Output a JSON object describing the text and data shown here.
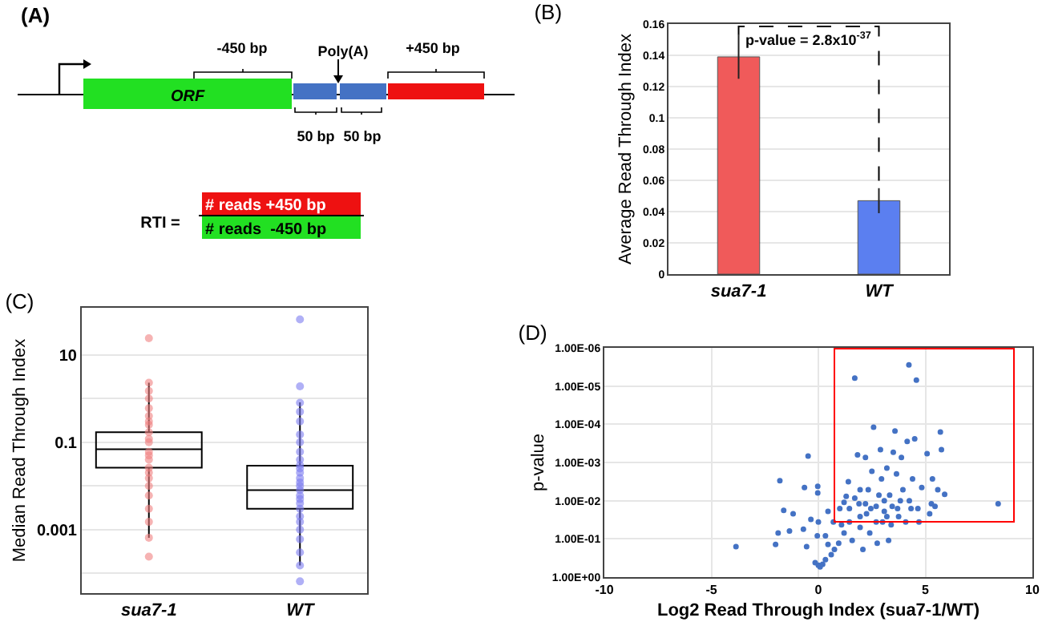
{
  "chart_data": [
    {
      "type": "other",
      "title": "(A)",
      "annotations": [
        "-450 bp",
        "Poly(A)",
        "+450 bp",
        "ORF",
        "50 bp",
        "50 bp",
        "RTI =",
        "# reads +450 bp",
        "# reads  -450 bp"
      ]
    },
    {
      "type": "bar",
      "title": "(B)",
      "categories": [
        "sua7-1",
        "WT"
      ],
      "values": [
        0.139,
        0.047
      ],
      "colors": [
        "#f05a5a",
        "#5b7ff0"
      ],
      "errors": [
        0.014,
        0.008
      ],
      "ylabel": "Average Read Through Index",
      "ylim": [
        0,
        0.16
      ],
      "yticks": [
        0,
        0.02,
        0.04,
        0.06,
        0.08,
        0.1,
        0.12,
        0.14,
        0.16
      ],
      "grid": "y",
      "annotations": [
        "p-value = 2.8x10$^{-37}$"
      ]
    },
    {
      "type": "box",
      "title": "(C)",
      "categories": [
        "sua7-1",
        "WT"
      ],
      "color": "#000000",
      "ylabel": "Median Read Through Index",
      "log": true,
      "grid": true,
      "ylim": [
        3.5e-05,
        120
      ],
      "yticks": [
        {
          "value": 0.0001,
          "label": null
        },
        0.001,
        {
          "value": 0.01,
          "label": null
        },
        0.1,
        {
          "value": 1,
          "label": null
        },
        10
      ],
      "boxes": [
        {
          "low": 0.00065,
          "q1": 0.026,
          "median": 0.069,
          "q3": 0.17,
          "high": 2.3
        },
        {
          "low": 0.00015,
          "q1": 0.003,
          "median": 0.008,
          "q3": 0.029,
          "high": 0.82
        }
      ],
      "series": [
        {
          "type": "scatter",
          "color": "#f08080",
          "marker": "circle",
          "x": [
            "sua7-1",
            "sua7-1",
            "sua7-1",
            "sua7-1",
            "sua7-1",
            "sua7-1",
            "sua7-1",
            "sua7-1",
            "sua7-1",
            "sua7-1",
            "sua7-1",
            "sua7-1",
            "sua7-1",
            "sua7-1",
            "sua7-1",
            "sua7-1",
            "sua7-1",
            "sua7-1",
            "sua7-1",
            "sua7-1",
            "sua7-1",
            "sua7-1",
            "sua7-1"
          ],
          "values": [
            24,
            2.3,
            1.5,
            1,
            0.6,
            0.4,
            0.3,
            0.25,
            0.17,
            0.12,
            0.1,
            0.06,
            0.05,
            0.04,
            0.026,
            0.02,
            0.015,
            0.01,
            0.006,
            0.003,
            0.0015,
            0.00065,
            0.00024
          ]
        },
        {
          "type": "scatter",
          "color": "#7b7bf0",
          "marker": "circle",
          "x": [
            "WT",
            "WT",
            "WT",
            "WT",
            "WT",
            "WT",
            "WT",
            "WT",
            "WT",
            "WT",
            "WT",
            "WT",
            "WT",
            "WT",
            "WT",
            "WT",
            "WT",
            "WT",
            "WT",
            "WT",
            "WT",
            "WT",
            "WT",
            "WT",
            "WT",
            "WT",
            "WT"
          ],
          "values": [
            65,
            1.9,
            0.8,
            0.5,
            0.3,
            0.15,
            0.1,
            0.06,
            0.04,
            0.03,
            0.025,
            0.02,
            0.015,
            0.012,
            0.01,
            0.008,
            0.006,
            0.005,
            0.004,
            0.003,
            0.002,
            0.0015,
            0.001,
            0.0006,
            0.0003,
            0.00015,
            6.5e-05
          ]
        }
      ]
    },
    {
      "type": "scatter",
      "title": "(D)",
      "xlabel": "Log2 Read Through Index (sua7-1/WT)",
      "ylabel": "p-value",
      "color": "#4472c4",
      "marker": "circle",
      "log": "y",
      "grid": true,
      "xlim": [
        -10,
        10
      ],
      "xticks": [
        -10,
        -5,
        0,
        5,
        10
      ],
      "ylim": [
        1,
        1e-06
      ],
      "yticks": [
        {
          "value": 1,
          "label": "1.00E+00"
        },
        {
          "value": 0.1,
          "label": "1.00E-01"
        },
        {
          "value": 0.01,
          "label": "1.00E-02"
        },
        {
          "value": 0.001,
          "label": "1.00E-03"
        },
        {
          "value": 0.0001,
          "label": "1.00E-04"
        },
        {
          "value": 1e-05,
          "label": "1.00E-05"
        },
        {
          "value": 1e-06,
          "label": "1.00E-06"
        }
      ],
      "x": [
        -3.85,
        -2.0,
        -1.88,
        -1.8,
        -1.62,
        -1.35,
        -1.18,
        -0.7,
        -0.65,
        -0.55,
        -0.48,
        -0.35,
        -0.03,
        -0.03,
        0,
        -0.05,
        -0.15,
        0,
        0.08,
        0.2,
        0.33,
        0.45,
        0.6,
        0.45,
        0.75,
        0.95,
        1.0,
        1.2,
        1.3,
        1.4,
        1.45,
        1.58,
        1.7,
        1.83,
        1.9,
        1.95,
        2.08,
        2.2,
        2.25,
        2.33,
        2.4,
        2.5,
        2.58,
        2.7,
        2.75,
        2.9,
        2.95,
        3.0,
        3.08,
        3.2,
        3.28,
        3.33,
        3.4,
        3.5,
        3.58,
        3.65,
        3.7,
        3.75,
        3.88,
        3.95,
        4.08,
        4.15,
        4.23,
        4.25,
        4.4,
        4.5,
        4.58,
        4.65,
        4.7,
        4.83,
        5.08,
        5.2,
        5.28,
        5.33,
        5.45,
        5.58,
        5.7,
        5.75,
        5.9,
        8.4,
        1.2,
        1.45,
        1.7,
        1.95,
        2.2,
        2.45,
        2.83,
        3.08,
        3.45,
        3.83,
        4.33,
        3.2,
        2.7,
        1.95,
        1.08,
        0.7,
        0.33
      ],
      "values": [
        0.16,
        0.14,
        0.07,
        0.003,
        0.018,
        0.062,
        0.022,
        0.056,
        0.0045,
        0.16,
        0.00068,
        0.031,
        0.0042,
        0.0063,
        0.036,
        0.083,
        0.42,
        0.49,
        0.54,
        0.46,
        0.35,
        0.14,
        0.26,
        0.019,
        0.19,
        0.13,
        0.016,
        0.07,
        0.0077,
        0.0032,
        0.036,
        0.11,
        6.2e-06,
        0.00063,
        0.012,
        0.05,
        0.19,
        0.00074,
        0.022,
        0.0052,
        0.07,
        0.0017,
        0.00012,
        0.014,
        0.13,
        0.00046,
        0.0027,
        0.036,
        0.019,
        0.0014,
        0.11,
        0.0072,
        0.043,
        0.00054,
        0.00015,
        0.002,
        0.016,
        0.026,
        0.00074,
        0.0052,
        0.036,
        0.00028,
        2.8e-06,
        0.01,
        0.0027,
        0.00024,
        7e-06,
        0.016,
        0.036,
        0.0045,
        0.00059,
        0.022,
        0.012,
        0.0027,
        0.014,
        0.0052,
        0.00016,
        0.00046,
        0.0068,
        0.012,
        0.011,
        0.016,
        0.0086,
        0.0052,
        0.012,
        0.016,
        0.0072,
        0.01,
        0.014,
        0.01,
        0.016,
        0.026,
        0.036,
        0.026,
        0.043,
        0.036,
        0.083
      ]
    }
  ]
}
